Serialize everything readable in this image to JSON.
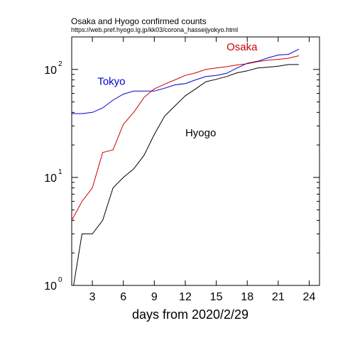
{
  "chart_data": {
    "type": "line",
    "title": "Osaka and Hyogo confirmed counts",
    "subtitle": "https://web.pref.hyogo.lg.jp/kk03/corona_hasseijyokyo.html",
    "xlabel": "days from 2020/2/29",
    "ylabel": "",
    "y_scale": "log10",
    "xlim": [
      1,
      25
    ],
    "ylim": [
      1,
      200
    ],
    "x_ticks": [
      3,
      6,
      9,
      12,
      15,
      18,
      21,
      24
    ],
    "y_ticks": [
      {
        "base": "10",
        "exponent": "0",
        "value": 1
      },
      {
        "base": "10",
        "exponent": "1",
        "value": 10
      },
      {
        "base": "10",
        "exponent": "2",
        "value": 100
      }
    ],
    "grid": false,
    "series": [
      {
        "name": "Tokyo",
        "color": "#0000cc",
        "label_at": {
          "x": 3.5,
          "y": 72
        },
        "x": [
          1,
          2,
          3,
          4,
          5,
          6,
          7,
          8,
          9,
          10,
          11,
          12,
          13,
          14,
          15,
          16,
          17,
          18,
          19,
          20,
          21,
          22,
          23
        ],
        "y": [
          39,
          39,
          40,
          44,
          52,
          59,
          63,
          63,
          63,
          67,
          72,
          74,
          80,
          86,
          88,
          92,
          103,
          114,
          119,
          128,
          136,
          138,
          154
        ]
      },
      {
        "name": "Osaka",
        "color": "#cc0000",
        "label_at": {
          "x": 16,
          "y": 150
        },
        "x": [
          1,
          2,
          3,
          4,
          5,
          6,
          7,
          8,
          9,
          10,
          11,
          12,
          13,
          14,
          15,
          16,
          17,
          18,
          19,
          20,
          21,
          22,
          23
        ],
        "y": [
          4,
          6,
          8,
          17,
          18,
          31,
          40,
          55,
          66,
          73,
          80,
          88,
          93,
          100,
          103,
          106,
          110,
          113,
          118,
          122,
          124,
          127,
          134
        ]
      },
      {
        "name": "Hyogo",
        "color": "#000000",
        "label_at": {
          "x": 12,
          "y": 24
        },
        "x": [
          1.1,
          2,
          3,
          4,
          5,
          6,
          7,
          8,
          9,
          10,
          11,
          12,
          13,
          14,
          15,
          16,
          17,
          18,
          19,
          20,
          21,
          22,
          23
        ],
        "y": [
          0.9,
          3,
          3,
          4,
          8,
          10,
          12,
          16,
          25,
          37,
          46,
          57,
          66,
          77,
          81,
          86,
          93,
          97,
          103,
          105,
          107,
          111,
          111
        ]
      }
    ]
  }
}
